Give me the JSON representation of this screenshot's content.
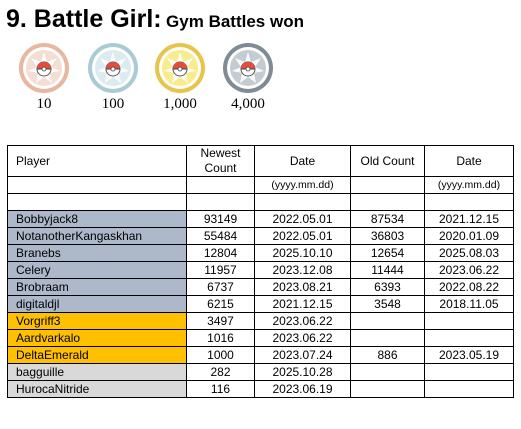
{
  "title": {
    "main": "9. Battle Girl:",
    "sub": "Gym Battles won"
  },
  "medals": [
    {
      "label": "10",
      "tier": "bronze",
      "ring": "#e9b69f",
      "face": "#f4ddd3"
    },
    {
      "label": "100",
      "tier": "silver",
      "ring": "#a9cbd5",
      "face": "#dcebf0"
    },
    {
      "label": "1,000",
      "tier": "gold",
      "ring": "#e8c54a",
      "face": "#f8ec8e"
    },
    {
      "label": "4,000",
      "tier": "platinum",
      "ring": "#7f8c95",
      "face": "#c3ccd2"
    }
  ],
  "table": {
    "headers": {
      "player": "Player",
      "newest_count": "Newest Count",
      "date": "Date",
      "old_count": "Old Count",
      "old_date": "Date"
    },
    "subheaders": {
      "date_format": "(yyyy.mm.dd)",
      "old_date_format": "(yyyy.mm.dd)"
    },
    "rows": [
      {
        "player": "Bobbyjack8",
        "newest": "93149",
        "date": "2022.05.01",
        "old": "87534",
        "old_date": "2021.12.15",
        "tier": "blue"
      },
      {
        "player": "NotanotherKangaskhan",
        "newest": "55484",
        "date": "2022.05.01",
        "old": "36803",
        "old_date": "2020.01.09",
        "tier": "blue"
      },
      {
        "player": "Branebs",
        "newest": "12804",
        "date": "2025.10.10",
        "old": "12654",
        "old_date": "2025.08.03",
        "tier": "blue"
      },
      {
        "player": "Celery",
        "newest": "11957",
        "date": "2023.12.08",
        "old": "11444",
        "old_date": "2023.06.22",
        "tier": "blue"
      },
      {
        "player": "Brobraam",
        "newest": "6737",
        "date": "2023.08.21",
        "old": "6393",
        "old_date": "2022.08.22",
        "tier": "blue"
      },
      {
        "player": "digitaldjl",
        "newest": "6215",
        "date": "2021.12.15",
        "old": "3548",
        "old_date": "2018.11.05",
        "tier": "blue"
      },
      {
        "player": "Vorgriff3",
        "newest": "3497",
        "date": "2023.06.22",
        "old": "",
        "old_date": "",
        "tier": "gold"
      },
      {
        "player": "Aardvarkalo",
        "newest": "1016",
        "date": "2023.06.22",
        "old": "",
        "old_date": "",
        "tier": "gold"
      },
      {
        "player": "DeltaEmerald",
        "newest": "1000",
        "date": "2023.07.24",
        "old": "886",
        "old_date": "2023.05.19",
        "tier": "gold"
      },
      {
        "player": "bagguille",
        "newest": "282",
        "date": "2025.10.28",
        "old": "",
        "old_date": "",
        "tier": "grey"
      },
      {
        "player": "HurocaNitride",
        "newest": "116",
        "date": "2023.06.19",
        "old": "",
        "old_date": "",
        "tier": "grey"
      }
    ]
  }
}
